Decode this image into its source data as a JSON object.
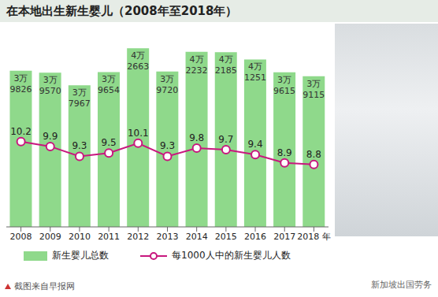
{
  "chart_data": {
    "type": "bar",
    "title": "在本地出生新生婴儿（2008年至2018年）",
    "categories": [
      "2008",
      "2009",
      "2010",
      "2011",
      "2012",
      "2013",
      "2014",
      "2015",
      "2016",
      "2017",
      "2018 年"
    ],
    "series": [
      {
        "name": "新生婴儿总数",
        "type": "bar",
        "color": "#8fd98b",
        "values": [
          39826,
          39570,
          37967,
          39654,
          42663,
          39720,
          42232,
          42185,
          41251,
          39615,
          39115
        ],
        "value_labels": [
          "3万9826",
          "3万9570",
          "3万7967",
          "3万9654",
          "4万2663",
          "3万9720",
          "4万2232",
          "4万2185",
          "4万1251",
          "3万9615",
          "3万9115"
        ]
      },
      {
        "name": "每1000人中的新生婴儿人数",
        "type": "line",
        "color": "#c8177e",
        "marker": "circle",
        "axis": "y2",
        "values": [
          10.2,
          9.9,
          9.3,
          9.5,
          10.1,
          9.3,
          9.8,
          9.7,
          9.4,
          8.9,
          8.8
        ]
      }
    ],
    "ylim": [
      20000,
      45000
    ],
    "yticks": [
      20000,
      45000
    ],
    "y2lim": [
      5,
      17
    ],
    "y2ticks": [
      5,
      17
    ],
    "data_labels": true,
    "tick_labels": "x",
    "legend": "bottom",
    "source": "截图来自早报网",
    "watermark": "新加坡出国劳务"
  }
}
